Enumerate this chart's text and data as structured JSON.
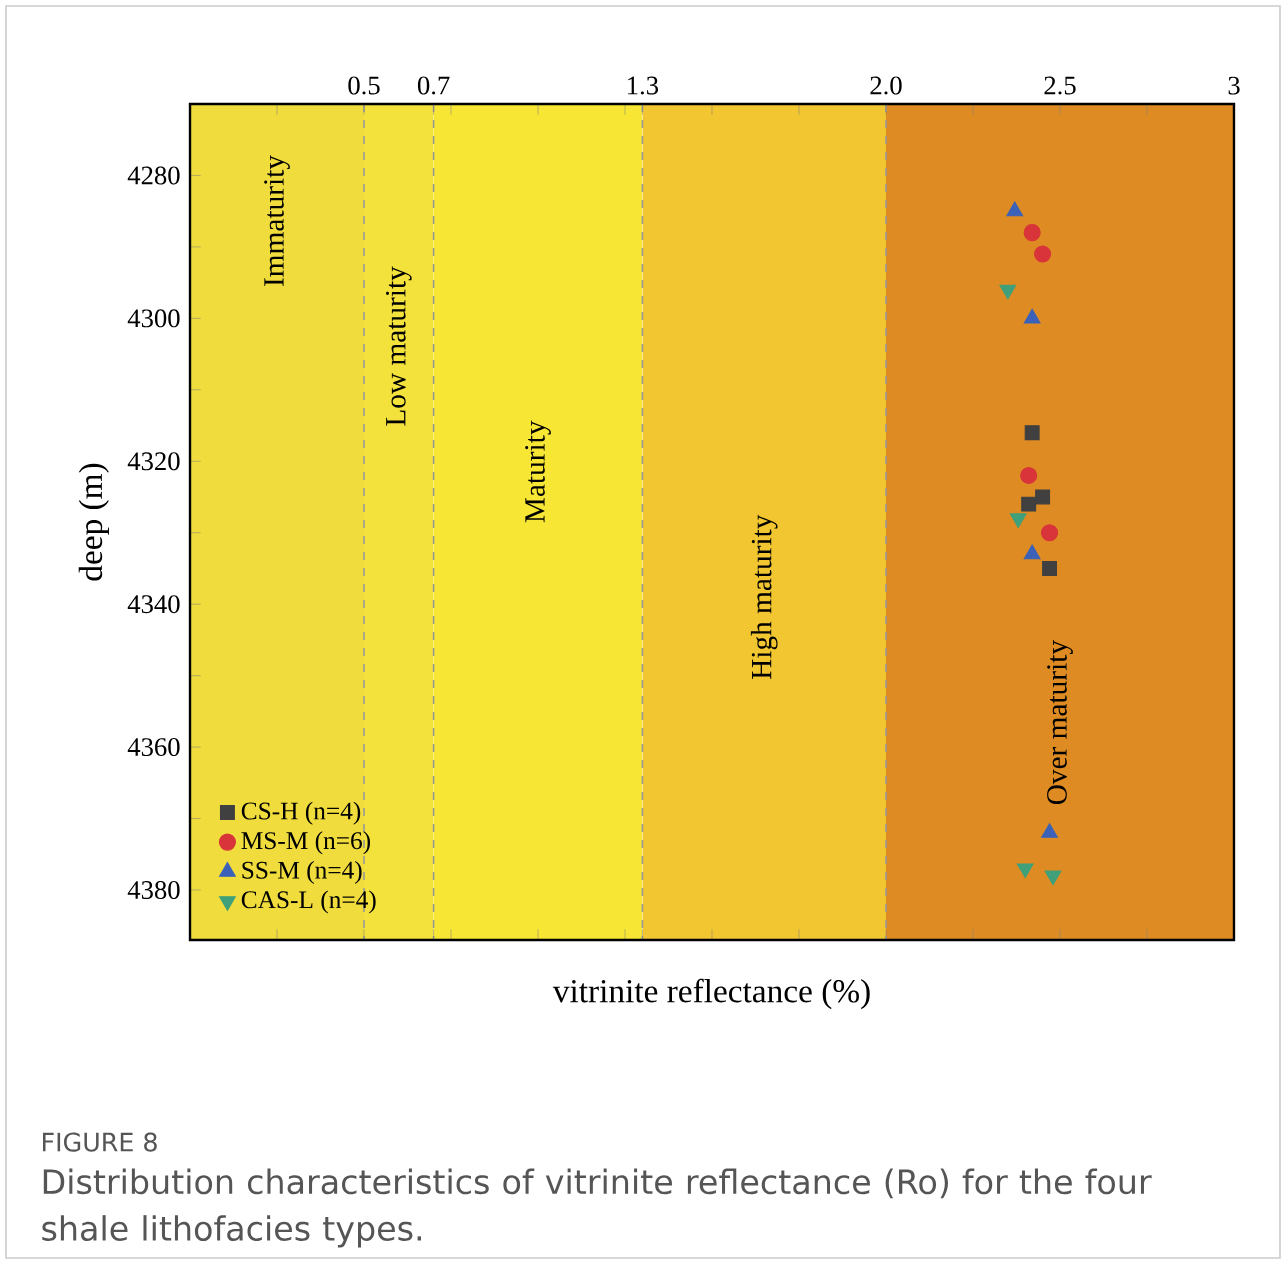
{
  "chart_data": {
    "type": "scatter",
    "xlabel": "vitrinite reflectance (%)",
    "ylabel": "deep (m)",
    "xlim": [
      0,
      3
    ],
    "ylim": [
      4387,
      4270
    ],
    "xticks": [
      {
        "value": 0.25,
        "label": null
      },
      0.5,
      0.7,
      {
        "value": 0.75,
        "label": null
      },
      {
        "value": 1,
        "label": null
      },
      {
        "value": 1.25,
        "label": null
      },
      1.3,
      {
        "value": 1.5,
        "label": null
      },
      {
        "value": 1.75,
        "label": null
      },
      {
        "value": 2,
        "label": "2.0"
      },
      {
        "value": 2.25,
        "label": null
      },
      2.5,
      {
        "value": 2.75,
        "label": null
      },
      3
    ],
    "yticks": [
      4280,
      {
        "value": 4290,
        "label": null
      },
      4300,
      {
        "value": 4310,
        "label": null
      },
      4320,
      {
        "value": 4330,
        "label": null
      },
      4340,
      {
        "value": 4350,
        "label": null
      },
      4360,
      {
        "value": 4370,
        "label": null
      },
      4380
    ],
    "legend": "bottom left",
    "grid": false,
    "series": [
      {
        "name": "CS-H (n=4)",
        "color": "#404040",
        "marker": "square",
        "x": [
          2.42,
          2.45,
          2.41,
          2.47
        ],
        "values": [
          4316,
          4325,
          4326,
          4335
        ]
      },
      {
        "name": "MS-M (n=6)",
        "color": "#d9343a",
        "marker": "circle",
        "x": [
          2.42,
          2.45,
          2.41,
          2.47
        ],
        "values": [
          4288,
          4291,
          4322,
          4330
        ]
      },
      {
        "name": "SS-M (n=4)",
        "color": "#3b62b8",
        "marker": "triangle",
        "x": [
          2.37,
          2.42,
          2.42,
          2.47
        ],
        "values": [
          4285,
          4300,
          4333,
          4372
        ]
      },
      {
        "name": "CAS-L (n=4)",
        "color": "#3fa07a",
        "marker": "triangle_down",
        "x": [
          2.35,
          2.38,
          2.4,
          2.48
        ],
        "values": [
          4296,
          4328,
          4377,
          4378
        ]
      }
    ],
    "bands": [
      {
        "axis": "x",
        "from": 0,
        "to": 0.5,
        "label": "Immaturity",
        "color": "#f0dc3c"
      },
      {
        "axis": "x",
        "from": 0.5,
        "to": 0.7,
        "label": "Low maturity",
        "color": "#f3e13c"
      },
      {
        "axis": "x",
        "from": 0.7,
        "to": 1.3,
        "label": "Maturity",
        "color": "#f8e634"
      },
      {
        "axis": "x",
        "from": 1.3,
        "to": 2,
        "label": "High maturity",
        "color": "#f1c630"
      },
      {
        "axis": "x",
        "from": 2,
        "to": 3,
        "label": "Over maturity",
        "color": "#dd8b22"
      }
    ],
    "ref_lines": [
      {
        "axis": "x",
        "value": 0.5,
        "color": "#999999",
        "line_style": "dashed"
      },
      {
        "axis": "x",
        "value": 0.7,
        "color": "#999999",
        "line_style": "dashed"
      },
      {
        "axis": "x",
        "value": 1.3,
        "color": "#999999",
        "line_style": "dashed"
      },
      {
        "axis": "x",
        "value": 2,
        "color": "#999999",
        "line_style": "dashed"
      }
    ],
    "annotations": [
      "FIGURE 8",
      "Distribution characteristics of vitrinite reflectance (Ro) for the four shale lithofacies types."
    ]
  }
}
